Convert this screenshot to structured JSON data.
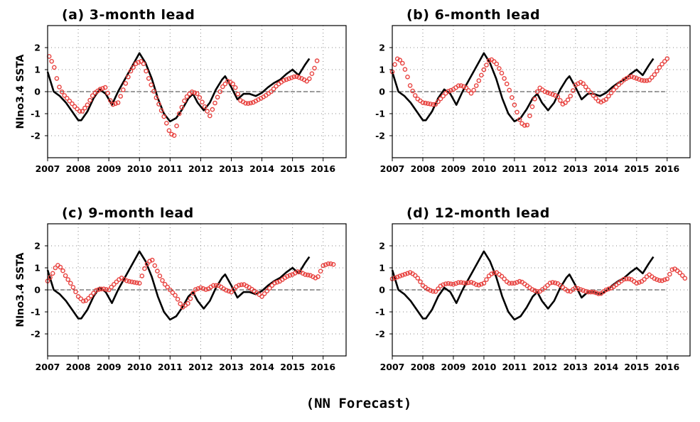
{
  "figure": {
    "footer": "(NN Forecast)",
    "colors": {
      "observed": "#000000",
      "forecast": "#e8423f",
      "grid": "#888888"
    }
  },
  "chart_data": [
    {
      "type": "line",
      "title": "(a) 3-month lead",
      "ylabel": "NIno3.4 SSTA",
      "xlim": [
        2007,
        2016.75
      ],
      "ylim": [
        -3,
        3
      ],
      "xticks": [
        "2007",
        "2008",
        "2009",
        "2010",
        "2011",
        "2012",
        "2013",
        "2014",
        "2015",
        "2016"
      ],
      "yticks": [
        "-2",
        "-1",
        "0",
        "1",
        "2"
      ],
      "grid": true,
      "series": [
        {
          "style": "solid-line",
          "x": [
            2007.0,
            2007.2,
            2007.4,
            2007.6,
            2007.8,
            2008.0,
            2008.1,
            2008.3,
            2008.5,
            2008.7,
            2008.9,
            2009.1,
            2009.3,
            2009.5,
            2009.7,
            2009.9,
            2010.0,
            2010.2,
            2010.4,
            2010.6,
            2010.8,
            2011.0,
            2011.2,
            2011.4,
            2011.6,
            2011.75,
            2011.9,
            2012.1,
            2012.3,
            2012.5,
            2012.7,
            2012.8,
            2013.0,
            2013.2,
            2013.4,
            2013.6,
            2013.8,
            2014.0,
            2014.2,
            2014.4,
            2014.6,
            2014.8,
            2015.0,
            2015.2,
            2015.4,
            2015.55
          ],
          "values": [
            0.9,
            0.0,
            -0.2,
            -0.5,
            -0.9,
            -1.3,
            -1.3,
            -0.9,
            -0.3,
            0.1,
            -0.1,
            -0.6,
            0.0,
            0.5,
            1.0,
            1.5,
            1.75,
            1.3,
            0.6,
            -0.3,
            -1.0,
            -1.35,
            -1.2,
            -0.8,
            -0.3,
            -0.1,
            -0.5,
            -0.85,
            -0.5,
            0.1,
            0.55,
            0.7,
            0.2,
            -0.35,
            -0.1,
            -0.1,
            -0.2,
            -0.05,
            0.2,
            0.4,
            0.55,
            0.8,
            1.0,
            0.75,
            1.2,
            1.5
          ]
        },
        {
          "style": "circle-markers",
          "x": [
            2007.05,
            2007.2,
            2007.35,
            2007.5,
            2007.7,
            2007.9,
            2008.1,
            2008.3,
            2008.5,
            2008.7,
            2008.9,
            2009.1,
            2009.3,
            2009.5,
            2009.7,
            2009.9,
            2010.1,
            2010.3,
            2010.5,
            2010.7,
            2010.85,
            2011.0,
            2011.15,
            2011.3,
            2011.5,
            2011.7,
            2011.9,
            2012.1,
            2012.3,
            2012.5,
            2012.7,
            2012.9,
            2013.1,
            2013.3,
            2013.5,
            2013.7,
            2013.9,
            2014.1,
            2014.3,
            2014.5,
            2014.7,
            2014.9,
            2015.1,
            2015.3,
            2015.5,
            2015.7,
            2015.85
          ],
          "values": [
            1.6,
            1.2,
            0.3,
            -0.1,
            -0.4,
            -0.7,
            -0.95,
            -0.6,
            -0.1,
            0.1,
            0.2,
            -0.6,
            -0.5,
            0.2,
            0.9,
            1.3,
            1.4,
            0.6,
            -0.1,
            -0.8,
            -1.3,
            -1.9,
            -2.0,
            -1.0,
            -0.3,
            0.0,
            -0.1,
            -0.6,
            -1.1,
            -0.4,
            0.2,
            0.5,
            0.3,
            -0.4,
            -0.55,
            -0.5,
            -0.35,
            -0.2,
            0.0,
            0.3,
            0.5,
            0.6,
            0.7,
            0.6,
            0.45,
            1.0,
            1.6
          ]
        }
      ]
    },
    {
      "type": "line",
      "title": "(b) 6-month lead",
      "ylabel": "",
      "xlim": [
        2007,
        2016.75
      ],
      "ylim": [
        -3,
        3
      ],
      "xticks": [
        "2007",
        "2008",
        "2009",
        "2010",
        "2011",
        "2012",
        "2013",
        "2014",
        "2015",
        "2016"
      ],
      "yticks": [
        "-2",
        "-1",
        "0",
        "1",
        "2"
      ],
      "grid": true,
      "series": [
        {
          "style": "solid-line",
          "x": [
            2007.0,
            2007.2,
            2007.4,
            2007.6,
            2007.8,
            2008.0,
            2008.1,
            2008.3,
            2008.5,
            2008.7,
            2008.9,
            2009.1,
            2009.3,
            2009.5,
            2009.7,
            2009.9,
            2010.0,
            2010.2,
            2010.4,
            2010.6,
            2010.8,
            2011.0,
            2011.2,
            2011.4,
            2011.6,
            2011.75,
            2011.9,
            2012.1,
            2012.3,
            2012.5,
            2012.7,
            2012.8,
            2013.0,
            2013.2,
            2013.4,
            2013.6,
            2013.8,
            2014.0,
            2014.2,
            2014.4,
            2014.6,
            2014.8,
            2015.0,
            2015.2,
            2015.4,
            2015.55
          ],
          "values": [
            0.9,
            0.0,
            -0.2,
            -0.5,
            -0.9,
            -1.3,
            -1.3,
            -0.9,
            -0.3,
            0.1,
            -0.1,
            -0.6,
            0.0,
            0.5,
            1.0,
            1.5,
            1.75,
            1.3,
            0.6,
            -0.3,
            -1.0,
            -1.35,
            -1.2,
            -0.8,
            -0.3,
            -0.1,
            -0.5,
            -0.85,
            -0.5,
            0.1,
            0.55,
            0.7,
            0.2,
            -0.35,
            -0.1,
            -0.1,
            -0.2,
            -0.05,
            0.2,
            0.4,
            0.55,
            0.8,
            1.0,
            0.75,
            1.2,
            1.5
          ]
        },
        {
          "style": "circle-markers",
          "x": [
            2007.0,
            2007.15,
            2007.3,
            2007.45,
            2007.6,
            2007.8,
            2008.0,
            2008.2,
            2008.4,
            2008.6,
            2008.8,
            2009.0,
            2009.2,
            2009.4,
            2009.6,
            2009.8,
            2010.0,
            2010.2,
            2010.4,
            2010.6,
            2010.8,
            2011.0,
            2011.2,
            2011.4,
            2011.6,
            2011.8,
            2012.0,
            2012.2,
            2012.4,
            2012.6,
            2012.8,
            2013.0,
            2013.2,
            2013.4,
            2013.6,
            2013.8,
            2014.0,
            2014.2,
            2014.4,
            2014.6,
            2014.8,
            2015.0,
            2015.2,
            2015.4,
            2015.6,
            2015.8,
            2016.0
          ],
          "values": [
            0.9,
            1.5,
            1.4,
            0.9,
            0.2,
            -0.3,
            -0.5,
            -0.55,
            -0.6,
            -0.3,
            0.0,
            0.1,
            0.3,
            0.2,
            -0.1,
            0.4,
            1.0,
            1.5,
            1.3,
            0.8,
            0.2,
            -0.6,
            -1.4,
            -1.6,
            -0.6,
            0.2,
            0.0,
            -0.1,
            -0.2,
            -0.6,
            -0.3,
            0.3,
            0.45,
            0.1,
            -0.2,
            -0.5,
            -0.35,
            0.0,
            0.3,
            0.55,
            0.7,
            0.6,
            0.5,
            0.5,
            0.8,
            1.2,
            1.5
          ]
        }
      ]
    },
    {
      "type": "line",
      "title": "(c) 9-month lead",
      "ylabel": "NIno3.4 SSTA",
      "xlim": [
        2007,
        2016.75
      ],
      "ylim": [
        -3,
        3
      ],
      "xticks": [
        "2007",
        "2008",
        "2009",
        "2010",
        "2011",
        "2012",
        "2013",
        "2014",
        "2015",
        "2016"
      ],
      "yticks": [
        "-2",
        "-1",
        "0",
        "1",
        "2"
      ],
      "grid": true,
      "series": [
        {
          "style": "solid-line",
          "x": [
            2007.0,
            2007.2,
            2007.4,
            2007.6,
            2007.8,
            2008.0,
            2008.1,
            2008.3,
            2008.5,
            2008.7,
            2008.9,
            2009.1,
            2009.3,
            2009.5,
            2009.7,
            2009.9,
            2010.0,
            2010.2,
            2010.4,
            2010.6,
            2010.8,
            2011.0,
            2011.2,
            2011.4,
            2011.6,
            2011.75,
            2011.9,
            2012.1,
            2012.3,
            2012.5,
            2012.7,
            2012.8,
            2013.0,
            2013.2,
            2013.4,
            2013.6,
            2013.8,
            2014.0,
            2014.2,
            2014.4,
            2014.6,
            2014.8,
            2015.0,
            2015.2,
            2015.4,
            2015.55
          ],
          "values": [
            0.9,
            0.0,
            -0.2,
            -0.5,
            -0.9,
            -1.3,
            -1.3,
            -0.9,
            -0.3,
            0.1,
            -0.1,
            -0.6,
            0.0,
            0.5,
            1.0,
            1.5,
            1.75,
            1.3,
            0.6,
            -0.3,
            -1.0,
            -1.35,
            -1.2,
            -0.8,
            -0.3,
            -0.1,
            -0.5,
            -0.85,
            -0.5,
            0.1,
            0.55,
            0.7,
            0.2,
            -0.35,
            -0.1,
            -0.1,
            -0.2,
            -0.05,
            0.2,
            0.4,
            0.55,
            0.8,
            1.0,
            0.75,
            1.2,
            1.5
          ]
        },
        {
          "style": "circle-markers",
          "x": [
            2007.0,
            2007.15,
            2007.3,
            2007.45,
            2007.6,
            2007.8,
            2008.0,
            2008.2,
            2008.4,
            2008.6,
            2008.8,
            2009.0,
            2009.2,
            2009.4,
            2009.6,
            2009.8,
            2010.0,
            2010.2,
            2010.4,
            2010.6,
            2010.8,
            2011.0,
            2011.2,
            2011.4,
            2011.6,
            2011.8,
            2012.0,
            2012.2,
            2012.4,
            2012.6,
            2012.8,
            2013.0,
            2013.2,
            2013.4,
            2013.6,
            2013.8,
            2014.0,
            2014.2,
            2014.4,
            2014.6,
            2014.8,
            2015.0,
            2015.2,
            2015.4,
            2015.6,
            2015.8,
            2016.0,
            2016.2,
            2016.35
          ],
          "values": [
            0.4,
            0.7,
            1.15,
            1.0,
            0.6,
            0.2,
            -0.3,
            -0.55,
            -0.3,
            0.0,
            0.05,
            0.0,
            0.3,
            0.55,
            0.4,
            0.35,
            0.3,
            1.1,
            1.4,
            0.8,
            0.3,
            0.0,
            -0.3,
            -0.8,
            -0.6,
            0.0,
            0.1,
            0.0,
            0.2,
            0.2,
            0.0,
            -0.1,
            0.2,
            0.25,
            0.1,
            -0.1,
            -0.3,
            0.0,
            0.3,
            0.4,
            0.6,
            0.7,
            0.85,
            0.7,
            0.65,
            0.5,
            1.1,
            1.2,
            1.15
          ]
        }
      ]
    },
    {
      "type": "line",
      "title": "(d) 12-month lead",
      "ylabel": "",
      "xlim": [
        2007,
        2016.75
      ],
      "ylim": [
        -3,
        3
      ],
      "xticks": [
        "2007",
        "2008",
        "2009",
        "2010",
        "2011",
        "2012",
        "2013",
        "2014",
        "2015",
        "2016"
      ],
      "yticks": [
        "-2",
        "-1",
        "0",
        "1",
        "2"
      ],
      "grid": true,
      "series": [
        {
          "style": "solid-line",
          "x": [
            2007.0,
            2007.2,
            2007.4,
            2007.6,
            2007.8,
            2008.0,
            2008.1,
            2008.3,
            2008.5,
            2008.7,
            2008.9,
            2009.1,
            2009.3,
            2009.5,
            2009.7,
            2009.9,
            2010.0,
            2010.2,
            2010.4,
            2010.6,
            2010.8,
            2011.0,
            2011.2,
            2011.4,
            2011.6,
            2011.75,
            2011.9,
            2012.1,
            2012.3,
            2012.5,
            2012.7,
            2012.8,
            2013.0,
            2013.2,
            2013.4,
            2013.6,
            2013.8,
            2014.0,
            2014.2,
            2014.4,
            2014.6,
            2014.8,
            2015.0,
            2015.2,
            2015.4,
            2015.55
          ],
          "values": [
            0.9,
            0.0,
            -0.2,
            -0.5,
            -0.9,
            -1.3,
            -1.3,
            -0.9,
            -0.3,
            0.1,
            -0.1,
            -0.6,
            0.0,
            0.5,
            1.0,
            1.5,
            1.75,
            1.3,
            0.6,
            -0.3,
            -1.0,
            -1.35,
            -1.2,
            -0.8,
            -0.3,
            -0.1,
            -0.5,
            -0.85,
            -0.5,
            0.1,
            0.55,
            0.7,
            0.2,
            -0.35,
            -0.1,
            -0.1,
            -0.2,
            -0.05,
            0.2,
            0.4,
            0.55,
            0.8,
            1.0,
            0.75,
            1.2,
            1.5
          ]
        },
        {
          "style": "circle-markers",
          "x": [
            2007.0,
            2007.2,
            2007.4,
            2007.6,
            2007.8,
            2008.0,
            2008.2,
            2008.4,
            2008.6,
            2008.8,
            2009.0,
            2009.2,
            2009.4,
            2009.6,
            2009.8,
            2010.0,
            2010.2,
            2010.4,
            2010.6,
            2010.8,
            2011.0,
            2011.2,
            2011.4,
            2011.6,
            2011.8,
            2012.0,
            2012.2,
            2012.4,
            2012.6,
            2012.8,
            2013.0,
            2013.2,
            2013.4,
            2013.6,
            2013.8,
            2014.0,
            2014.2,
            2014.4,
            2014.6,
            2014.8,
            2015.0,
            2015.2,
            2015.4,
            2015.6,
            2015.8,
            2016.0,
            2016.2,
            2016.4,
            2016.6
          ],
          "values": [
            0.5,
            0.6,
            0.7,
            0.8,
            0.6,
            0.2,
            0.0,
            -0.1,
            0.2,
            0.3,
            0.25,
            0.35,
            0.3,
            0.35,
            0.2,
            0.3,
            0.7,
            0.8,
            0.6,
            0.3,
            0.3,
            0.4,
            0.2,
            0.0,
            -0.1,
            0.1,
            0.35,
            0.3,
            0.1,
            -0.1,
            0.1,
            0.0,
            -0.1,
            -0.1,
            -0.2,
            0.0,
            0.1,
            0.3,
            0.5,
            0.5,
            0.3,
            0.4,
            0.7,
            0.5,
            0.4,
            0.5,
            1.0,
            0.8,
            0.5
          ]
        }
      ]
    }
  ]
}
